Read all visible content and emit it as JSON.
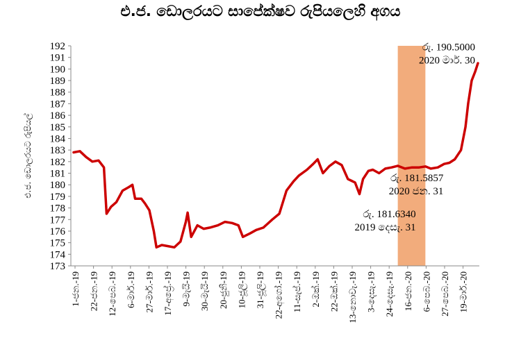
{
  "chart_data": {
    "type": "line",
    "title": "එ.ජ. ඩොලරයට සාපේක්ෂව රුපියලෙහි අගය",
    "ylabel": "එ.ජ. ඩොලරයට රුපියල්",
    "xlabel": "",
    "ylim": [
      173,
      192
    ],
    "yticks": [
      173,
      174,
      175,
      176,
      177,
      178,
      179,
      180,
      181,
      182,
      183,
      184,
      185,
      186,
      187,
      188,
      189,
      190,
      191,
      192
    ],
    "grid": false,
    "x_tick_labels": [
      "1-ජන.-19",
      "22-ජන.-19",
      "12-පෙබ.-19",
      "6-මාර්.-19",
      "27-මාර්.-19",
      "17-අප්‍රේ.-19",
      "9-මැයි-19",
      "30-මැයි-19",
      "20-ජුනි-19",
      "10-ජූලි-19",
      "31-ජූලි-19",
      "22-අගෝ.-19",
      "11-සැප්.-19",
      "2-ඔක්.-19",
      "22-ඔක්.-19",
      "13-නොවැ.-19",
      "3-දෙසැ.-19",
      "24-දෙසැ.-19",
      "16-ජන.-20",
      "6-පෙබ.-20",
      "27-පෙබ.-20",
      "19-මාර්.-20"
    ],
    "x_start": "2019-01-01",
    "x_end": "2020-03-30",
    "series": [
      {
        "name": "",
        "color": "#cc0000",
        "points": [
          [
            "2019-01-01",
            182.8
          ],
          [
            "2019-01-08",
            182.9
          ],
          [
            "2019-01-15",
            182.4
          ],
          [
            "2019-01-22",
            182.0
          ],
          [
            "2019-01-29",
            182.1
          ],
          [
            "2019-02-04",
            181.5
          ],
          [
            "2019-02-07",
            177.5
          ],
          [
            "2019-02-12",
            178.1
          ],
          [
            "2019-02-18",
            178.5
          ],
          [
            "2019-02-25",
            179.5
          ],
          [
            "2019-03-04",
            179.8
          ],
          [
            "2019-03-08",
            180.0
          ],
          [
            "2019-03-11",
            178.8
          ],
          [
            "2019-03-18",
            178.8
          ],
          [
            "2019-03-22",
            178.4
          ],
          [
            "2019-03-27",
            177.8
          ],
          [
            "2019-04-01",
            176.0
          ],
          [
            "2019-04-04",
            174.6
          ],
          [
            "2019-04-10",
            174.8
          ],
          [
            "2019-04-17",
            174.7
          ],
          [
            "2019-04-24",
            174.6
          ],
          [
            "2019-05-01",
            175.1
          ],
          [
            "2019-05-07",
            176.8
          ],
          [
            "2019-05-09",
            177.6
          ],
          [
            "2019-05-13",
            175.5
          ],
          [
            "2019-05-20",
            176.5
          ],
          [
            "2019-05-27",
            176.2
          ],
          [
            "2019-06-03",
            176.3
          ],
          [
            "2019-06-12",
            176.5
          ],
          [
            "2019-06-20",
            176.8
          ],
          [
            "2019-06-28",
            176.7
          ],
          [
            "2019-07-05",
            176.5
          ],
          [
            "2019-07-10",
            175.5
          ],
          [
            "2019-07-18",
            175.8
          ],
          [
            "2019-07-25",
            176.1
          ],
          [
            "2019-08-02",
            176.3
          ],
          [
            "2019-08-12",
            177.0
          ],
          [
            "2019-08-20",
            177.5
          ],
          [
            "2019-08-28",
            179.5
          ],
          [
            "2019-09-05",
            180.3
          ],
          [
            "2019-09-11",
            180.8
          ],
          [
            "2019-09-20",
            181.3
          ],
          [
            "2019-09-27",
            181.8
          ],
          [
            "2019-10-02",
            182.2
          ],
          [
            "2019-10-08",
            181.0
          ],
          [
            "2019-10-15",
            181.6
          ],
          [
            "2019-10-22",
            182.0
          ],
          [
            "2019-10-29",
            181.7
          ],
          [
            "2019-11-05",
            180.5
          ],
          [
            "2019-11-13",
            180.2
          ],
          [
            "2019-11-18",
            179.2
          ],
          [
            "2019-11-22",
            180.5
          ],
          [
            "2019-11-28",
            181.2
          ],
          [
            "2019-12-03",
            181.3
          ],
          [
            "2019-12-10",
            181.0
          ],
          [
            "2019-12-17",
            181.4
          ],
          [
            "2019-12-24",
            181.5
          ],
          [
            "2019-12-31",
            181.634
          ],
          [
            "2020-01-08",
            181.4
          ],
          [
            "2020-01-16",
            181.5
          ],
          [
            "2020-01-24",
            181.5
          ],
          [
            "2020-01-31",
            181.5857
          ],
          [
            "2020-02-06",
            181.4
          ],
          [
            "2020-02-14",
            181.5
          ],
          [
            "2020-02-21",
            181.8
          ],
          [
            "2020-02-27",
            181.9
          ],
          [
            "2020-03-04",
            182.2
          ],
          [
            "2020-03-11",
            183.0
          ],
          [
            "2020-03-16",
            185.0
          ],
          [
            "2020-03-19",
            187.0
          ],
          [
            "2020-03-23",
            189.0
          ],
          [
            "2020-03-27",
            189.8
          ],
          [
            "2020-03-30",
            190.5
          ]
        ]
      }
    ],
    "highlight_band": {
      "from": "2019-12-31",
      "to": "2020-01-31",
      "color": "#f2ac7c"
    },
    "annotations": [
      {
        "lines": [
          "රු. 190.5000",
          "2020 මාර්. 30"
        ],
        "anchor_x": "2020-03-30",
        "anchor_y": 191.6
      },
      {
        "lines": [
          "රු. 181.5857",
          "2020 ජන. 31"
        ],
        "anchor_x": "2020-01-31",
        "anchor_y": 180.3
      },
      {
        "lines": [
          "රු. 181.6340",
          "2019 දෙසැ. 31"
        ],
        "anchor_x": "2019-12-31",
        "anchor_y": 177.2
      }
    ]
  }
}
